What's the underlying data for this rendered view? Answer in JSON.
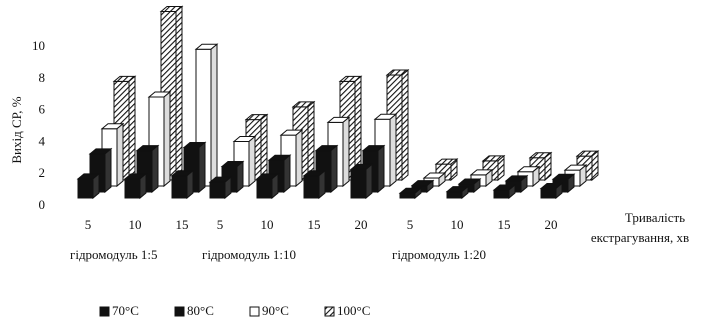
{
  "chart_data": {
    "type": "bar3d",
    "y_label": "Вихід СР, %",
    "x_label": [
      "Тривалість",
      "екстрагування, хв"
    ],
    "groups": [
      {
        "name": "гідромодуль 1:5",
        "categories": [
          "5",
          "10",
          "15"
        ]
      },
      {
        "name": "гідромодуль 1:10",
        "categories": [
          "5",
          "10",
          "15",
          "20"
        ]
      },
      {
        "name": "гідромодуль 1:20",
        "categories": [
          "5",
          "10",
          "15",
          "20"
        ]
      }
    ],
    "series": [
      {
        "name": "70°C",
        "color": "#111111",
        "hatch": false,
        "values": [
          1.2,
          1.2,
          1.4,
          1.0,
          1.2,
          1.4,
          1.8,
          0.3,
          0.4,
          0.5,
          0.6
        ]
      },
      {
        "name": "80°C",
        "color": "#111111",
        "hatch": false,
        "values": [
          2.4,
          2.6,
          2.8,
          1.6,
          2.0,
          2.6,
          2.6,
          0.4,
          0.5,
          0.7,
          0.8
        ]
      },
      {
        "name": "90°C",
        "color": "#ffffff",
        "hatch": false,
        "values": [
          3.6,
          5.6,
          8.6,
          2.8,
          3.2,
          4.0,
          4.2,
          0.5,
          0.7,
          0.9,
          1.0
        ]
      },
      {
        "name": "100°C",
        "color": "#666666",
        "hatch": true,
        "values": [
          6.2,
          10.6,
          null,
          3.8,
          4.6,
          6.2,
          6.6,
          1.0,
          1.2,
          1.4,
          1.5
        ]
      }
    ],
    "ylim": [
      0,
      10
    ],
    "yticks": [
      0,
      2,
      4,
      6,
      8,
      10
    ]
  }
}
